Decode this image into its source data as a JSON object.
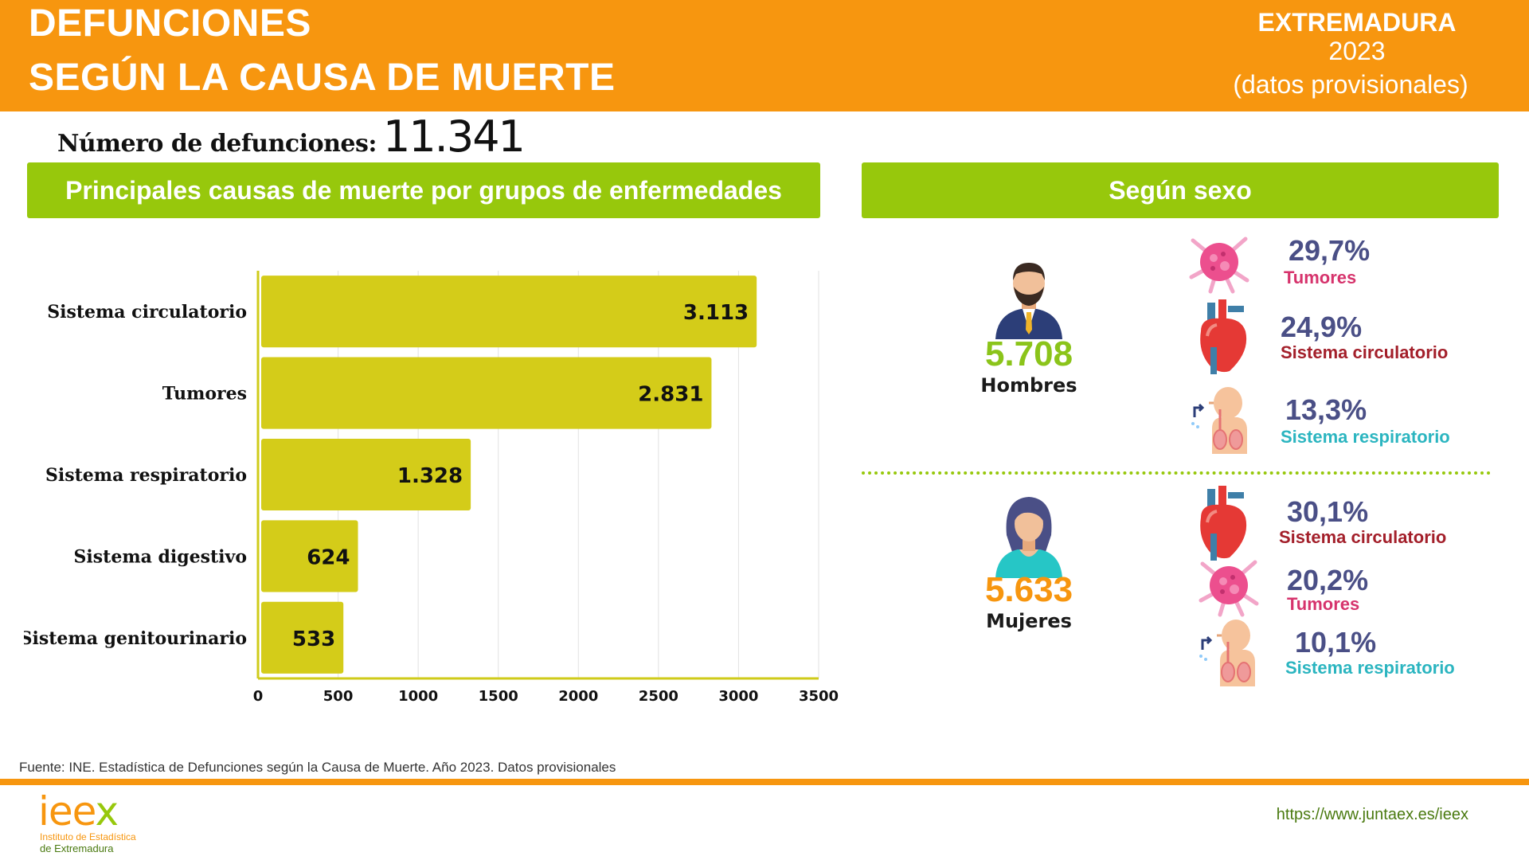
{
  "header": {
    "title_line1": "DEFUNCIONES",
    "title_line2": "SEGÚN LA CAUSA DE  MUERTE",
    "region": "EXTREMADURA",
    "year": "2023",
    "note": "(datos provisionales)"
  },
  "total": {
    "label": "Número de defunciones:",
    "value": "11.341"
  },
  "left_band": "Principales causas de muerte por grupos de enfermedades",
  "right_band": "Según sexo",
  "chart_data": {
    "type": "bar",
    "orientation": "horizontal",
    "categories": [
      "Sistema circulatorio",
      "Tumores",
      "Sistema respiratorio",
      "Sistema digestivo",
      "Sistema genitourinario"
    ],
    "values": [
      3113,
      2831,
      1328,
      624,
      533
    ],
    "value_labels": [
      "3.113",
      "2.831",
      "1.328",
      "624",
      "533"
    ],
    "xlim": [
      0,
      3500
    ],
    "xticks": [
      0,
      500,
      1000,
      1500,
      2000,
      2500,
      3000,
      3500
    ],
    "grid": true,
    "bar_color": "#d4cc19"
  },
  "sex": {
    "men": {
      "total": "5.708",
      "label": "Hombres",
      "color": "#8bc41a",
      "causes": [
        {
          "pct": "29,7%",
          "name": "Tumores",
          "color": "#d6336c",
          "icon": "tumor-icon"
        },
        {
          "pct": "24,9%",
          "name": "Sistema circulatorio",
          "color": "#a31f2a",
          "icon": "heart-icon"
        },
        {
          "pct": "13,3%",
          "name": "Sistema respiratorio",
          "color": "#2bb5c0",
          "icon": "lungs-icon"
        }
      ]
    },
    "women": {
      "total": "5.633",
      "label": "Mujeres",
      "color": "#f7960f",
      "causes": [
        {
          "pct": "30,1%",
          "name": "Sistema circulatorio",
          "color": "#a31f2a",
          "icon": "heart-icon"
        },
        {
          "pct": "20,2%",
          "name": "Tumores",
          "color": "#d6336c",
          "icon": "tumor-icon"
        },
        {
          "pct": "10,1%",
          "name": "Sistema respiratorio",
          "color": "#2bb5c0",
          "icon": "lungs-icon"
        }
      ]
    }
  },
  "footer": {
    "source": "Fuente: INE. Estadística de Defunciones según la Causa de Muerte. Año 2023. Datos provisionales",
    "logo_word_a": "iee",
    "logo_word_b": "x",
    "logo_sub1": "Instituto de Estadística",
    "logo_sub2": "de Extremadura",
    "url": "https://www.juntaex.es/ieex"
  }
}
